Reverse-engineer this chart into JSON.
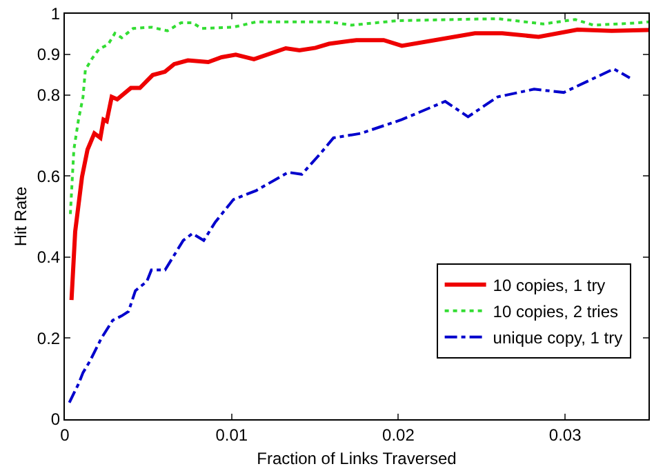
{
  "chart_data": {
    "type": "line",
    "xlabel": "Fraction of Links Traversed",
    "ylabel": "Hit Rate",
    "xlim": [
      0,
      0.035
    ],
    "ylim": [
      0,
      1
    ],
    "xticks": [
      0,
      0.01,
      0.02,
      0.03
    ],
    "yticks": [
      0,
      0.2,
      0.4,
      0.6,
      0.8,
      0.9,
      1
    ],
    "legend": "bottom right",
    "marker": "none",
    "series": [
      {
        "name": "10 copies, 1 try",
        "color": "#ee0000",
        "line_style": "solid",
        "x": [
          0.0004,
          0.00062,
          0.00103,
          0.00136,
          0.00177,
          0.00213,
          0.00232,
          0.00251,
          0.00281,
          0.00314,
          0.00396,
          0.0045,
          0.00527,
          0.006,
          0.00656,
          0.00738,
          0.0086,
          0.0094,
          0.01025,
          0.01134,
          0.01325,
          0.01407,
          0.01503,
          0.01584,
          0.01748,
          0.01912,
          0.02021,
          0.02459,
          0.02623,
          0.02841,
          0.03074,
          0.03279,
          0.035
        ],
        "values": [
          0.294,
          0.463,
          0.598,
          0.665,
          0.705,
          0.694,
          0.739,
          0.735,
          0.795,
          0.789,
          0.817,
          0.817,
          0.849,
          0.857,
          0.876,
          0.885,
          0.881,
          0.893,
          0.899,
          0.888,
          0.915,
          0.91,
          0.916,
          0.926,
          0.935,
          0.935,
          0.921,
          0.952,
          0.952,
          0.943,
          0.961,
          0.958,
          0.96
        ]
      },
      {
        "name": "10 copies, 2 tries",
        "color": "#33dd33",
        "line_style": "dotted",
        "x": [
          0.00033,
          0.00054,
          0.00082,
          0.00109,
          0.00123,
          0.00164,
          0.00205,
          0.00259,
          0.003,
          0.00341,
          0.0041,
          0.00519,
          0.00615,
          0.00697,
          0.00765,
          0.0082,
          0.01011,
          0.01148,
          0.01585,
          0.01721,
          0.01994,
          0.02595,
          0.02869,
          0.03061,
          0.03169,
          0.03415,
          0.035
        ],
        "values": [
          0.506,
          0.665,
          0.739,
          0.795,
          0.862,
          0.89,
          0.913,
          0.924,
          0.952,
          0.941,
          0.964,
          0.967,
          0.958,
          0.978,
          0.978,
          0.964,
          0.967,
          0.98,
          0.98,
          0.972,
          0.983,
          0.988,
          0.975,
          0.986,
          0.972,
          0.977,
          0.98
        ]
      },
      {
        "name": "unique copy, 1 try",
        "color": "#0000cc",
        "line_style": "dashed",
        "x": [
          0.00027,
          0.00054,
          0.00082,
          0.00109,
          0.0015,
          0.00218,
          0.00287,
          0.00341,
          0.00382,
          0.00423,
          0.00492,
          0.00519,
          0.00601,
          0.0071,
          0.00765,
          0.00833,
          0.00902,
          0.01011,
          0.01148,
          0.01339,
          0.01421,
          0.0153,
          0.01611,
          0.01775,
          0.02021,
          0.02281,
          0.02418,
          0.02595,
          0.02814,
          0.02992,
          0.03292,
          0.03388
        ],
        "values": [
          0.041,
          0.064,
          0.087,
          0.115,
          0.143,
          0.199,
          0.244,
          0.255,
          0.266,
          0.317,
          0.34,
          0.368,
          0.368,
          0.441,
          0.458,
          0.441,
          0.486,
          0.542,
          0.564,
          0.609,
          0.604,
          0.654,
          0.694,
          0.705,
          0.739,
          0.784,
          0.746,
          0.795,
          0.814,
          0.806,
          0.864,
          0.842
        ]
      }
    ]
  }
}
